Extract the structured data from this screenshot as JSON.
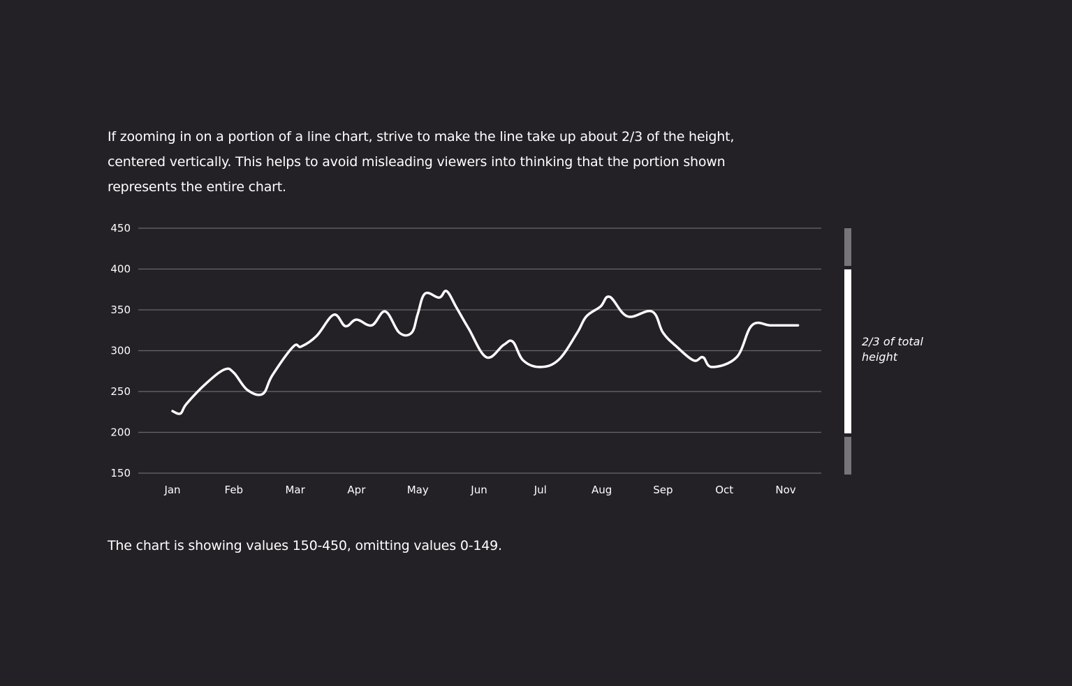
{
  "intro_text": "If zooming in on a portion of a line chart, strive to make the line take up about 2/3 of the height, centered vertically. This helps to avoid misleading viewers into thinking that the portion shown represents the entire chart.",
  "footnote_text": "The chart is showing values 150-450, omitting values 0-149.",
  "annotation": {
    "line1": "2/3 of total",
    "line2": "height"
  },
  "colors": {
    "background": "#242126",
    "line": "#ffffff",
    "grid": "#6a676c",
    "bracket_main": "#ffffff",
    "bracket_dim": "#77747a"
  },
  "chart_data": {
    "type": "line",
    "title": "",
    "xlabel": "",
    "ylabel": "",
    "ylim": [
      150,
      450
    ],
    "yticks": [
      450,
      400,
      350,
      300,
      250,
      200,
      150
    ],
    "categories": [
      "Jan",
      "Feb",
      "Mar",
      "Apr",
      "May",
      "Jun",
      "Jul",
      "Aug",
      "Sep",
      "Oct",
      "Nov"
    ],
    "grid": true,
    "x": [
      0,
      0.13,
      0.23,
      0.55,
      0.85,
      1.0,
      1.22,
      1.47,
      1.63,
      1.97,
      2.1,
      2.35,
      2.63,
      2.82,
      3.0,
      3.25,
      3.47,
      3.7,
      3.9,
      4.0,
      4.12,
      4.35,
      4.47,
      4.63,
      4.83,
      5.12,
      5.4,
      5.55,
      5.72,
      6.0,
      6.3,
      6.6,
      6.75,
      6.98,
      7.13,
      7.42,
      7.82,
      8.0,
      8.22,
      8.5,
      8.65,
      8.8,
      9.2,
      9.45,
      9.75,
      10.0,
      10.2
    ],
    "series": [
      {
        "values": [
          226,
          223,
          235,
          260,
          277,
          273,
          252,
          247,
          270,
          305,
          305,
          318,
          344,
          330,
          338,
          331,
          348,
          322,
          322,
          345,
          370,
          365,
          373,
          353,
          327,
          292,
          307,
          311,
          288,
          280,
          289,
          322,
          342,
          354,
          366,
          342,
          348,
          322,
          305,
          288,
          292,
          280,
          292,
          331,
          331,
          331,
          331
        ]
      }
    ]
  }
}
